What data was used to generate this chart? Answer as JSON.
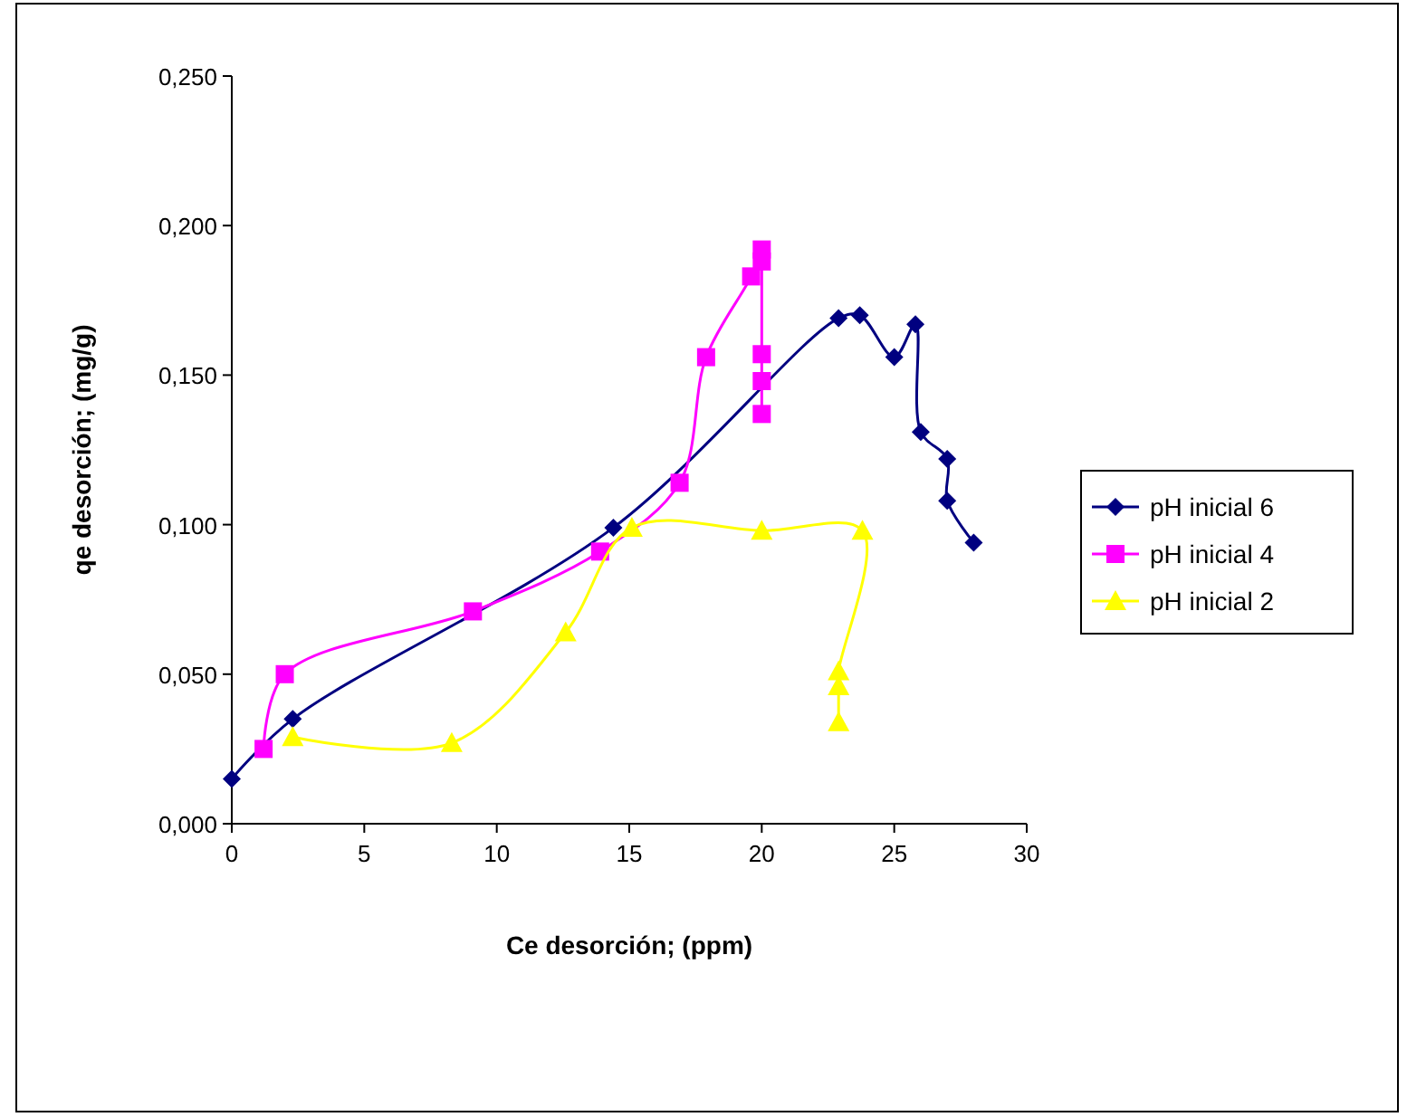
{
  "chart_data": {
    "type": "line",
    "xlabel": "Ce desorción; (ppm)",
    "ylabel": "qe desorción; (mg/g)",
    "xlim": [
      0,
      30
    ],
    "xticks": [
      0,
      5,
      10,
      15,
      20,
      25,
      30
    ],
    "ylim": [
      0,
      0.25
    ],
    "yticks": [
      {
        "value": 0,
        "label": "0,000"
      },
      {
        "value": 0.05,
        "label": "0,050"
      },
      {
        "value": 0.1,
        "label": "0,100"
      },
      {
        "value": 0.15,
        "label": "0,150"
      },
      {
        "value": 0.2,
        "label": "0,200"
      },
      {
        "value": 0.25,
        "label": "0,250"
      }
    ],
    "grid": false,
    "legend": "right",
    "line_style": "solid",
    "series": [
      {
        "name": "pH inicial 6",
        "color": "#000080",
        "marker": "diamond",
        "x": [
          0,
          2.3,
          14.4,
          22.9,
          23.7,
          25.0,
          25.8,
          26.0,
          27.0,
          27.0,
          28.0
        ],
        "values": [
          0.015,
          0.035,
          0.099,
          0.169,
          0.17,
          0.156,
          0.167,
          0.131,
          0.122,
          0.108,
          0.094
        ]
      },
      {
        "name": "pH inicial 4",
        "color": "#ff00ff",
        "marker": "square",
        "x": [
          1.2,
          2.0,
          9.1,
          13.9,
          16.9,
          17.9,
          19.6,
          20.0,
          20.0,
          20.0,
          20.0,
          20.0
        ],
        "values": [
          0.025,
          0.05,
          0.071,
          0.091,
          0.114,
          0.156,
          0.183,
          0.192,
          0.188,
          0.157,
          0.148,
          0.137
        ]
      },
      {
        "name": "pH inicial 2",
        "color": "#ffff00",
        "marker": "triangle",
        "x": [
          2.3,
          8.3,
          12.6,
          15.1,
          20.0,
          23.8,
          22.9,
          22.9,
          22.9
        ],
        "values": [
          0.029,
          0.027,
          0.064,
          0.099,
          0.098,
          0.098,
          0.051,
          0.046,
          0.034
        ]
      }
    ]
  }
}
